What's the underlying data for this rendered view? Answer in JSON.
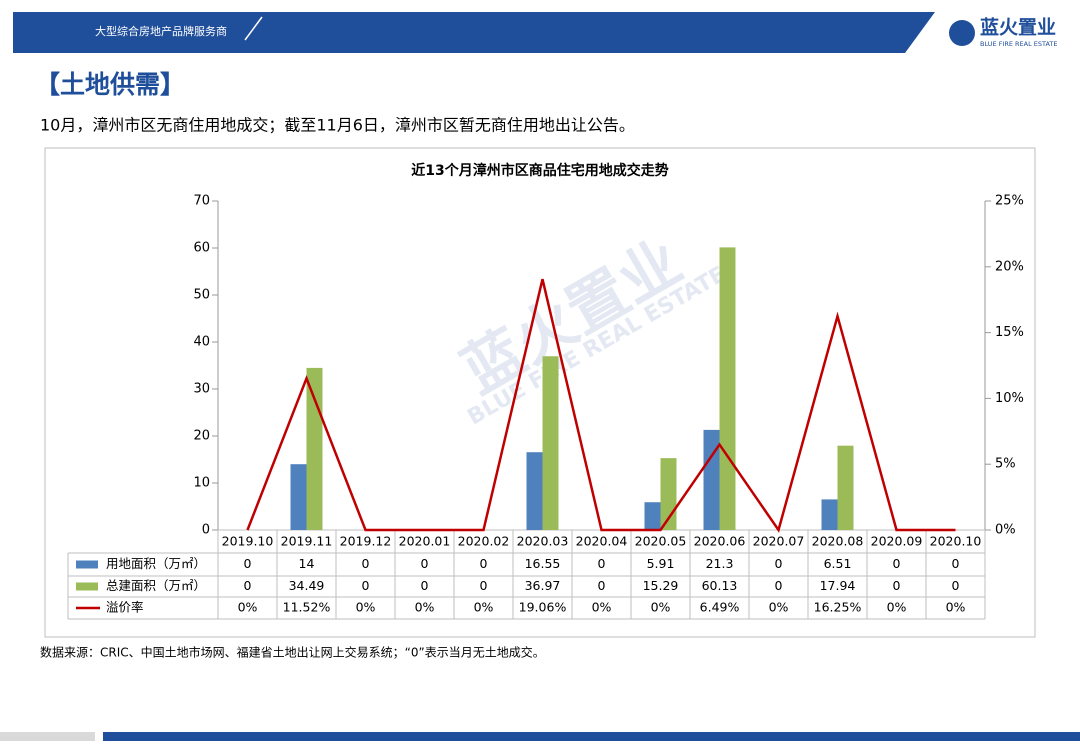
{
  "header": {
    "slogan": "大型综合房地产品牌服务商",
    "logo": "蓝火置业",
    "logo_subtitle": "BLUE FIRE REAL ESTATE"
  },
  "section_title": "【土地供需】",
  "text": "10月，漳州市区无商住用地成交；截至11月6日，漳州市区暂无商住用地出让公告。",
  "source": "数据来源：CRIC、中国土地市场网、福建省土地出让网上交易系统；“0”表示当月无土地成交。",
  "chart_data": {
    "type": "bar-line",
    "title": "近13个月漳州市区商品住宅用地成交走势",
    "categories": [
      "2019.10",
      "2019.11",
      "2019.12",
      "2020.01",
      "2020.02",
      "2020.03",
      "2020.04",
      "2020.05",
      "2020.06",
      "2020.07",
      "2020.08",
      "2020.09",
      "2020.10"
    ],
    "series": [
      {
        "name": "用地面积（万㎡）",
        "type": "bar",
        "color": "#4f81bd",
        "values": [
          0,
          14,
          0,
          0,
          0,
          16.55,
          0,
          5.91,
          21.3,
          0,
          6.51,
          0,
          0
        ]
      },
      {
        "name": "总建面积（万㎡）",
        "type": "bar",
        "color": "#9bbb59",
        "values": [
          0,
          34.49,
          0,
          0,
          0,
          36.97,
          0,
          15.29,
          60.13,
          0,
          17.94,
          0,
          0
        ]
      },
      {
        "name": "溢价率",
        "type": "line",
        "axis": "y2",
        "color": "#c00000",
        "values": [
          0,
          11.52,
          0,
          0,
          0,
          19.06,
          0,
          0,
          6.49,
          0,
          16.25,
          0,
          0
        ],
        "value_labels": [
          "0%",
          "11.52%",
          "0%",
          "0%",
          "0%",
          "19.06%",
          "0%",
          "0%",
          "6.49%",
          "0%",
          "16.25%",
          "0%",
          "0%"
        ]
      }
    ],
    "ylim": [
      0,
      70
    ],
    "yticks": [
      0,
      10,
      20,
      30,
      40,
      50,
      60,
      70
    ],
    "y2lim": [
      0,
      25
    ],
    "y2ticks": [
      {
        "value": 0,
        "label": "0%"
      },
      {
        "value": 5,
        "label": "5%"
      },
      {
        "value": 10,
        "label": "10%"
      },
      {
        "value": 15,
        "label": "15%"
      },
      {
        "value": 20,
        "label": "20%"
      },
      {
        "value": 25,
        "label": "25%"
      }
    ]
  }
}
